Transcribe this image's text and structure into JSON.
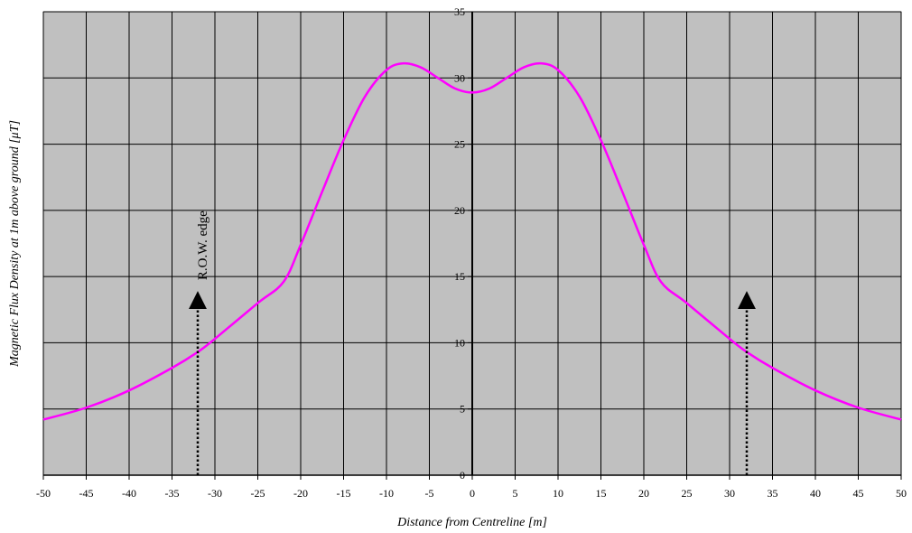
{
  "chart_data": {
    "type": "line",
    "title": "",
    "xlabel": "Distance from Centreline [m]",
    "ylabel": "Magnetic Flux Density at 1m above ground [μT]",
    "xlim": [
      -50,
      50
    ],
    "ylim": [
      0,
      35
    ],
    "xticks": [
      -50,
      -45,
      -40,
      -35,
      -30,
      -25,
      -20,
      -15,
      -10,
      -5,
      0,
      5,
      10,
      15,
      20,
      25,
      30,
      35,
      40,
      45,
      50
    ],
    "yticks": [
      0,
      5,
      10,
      15,
      20,
      25,
      30,
      35
    ],
    "grid": true,
    "plot_background": "#c0c0c0",
    "series": [
      {
        "color": "#ff00ff",
        "x": [
          -50,
          -45,
          -40,
          -35,
          -32,
          -30,
          -25,
          -22,
          -20,
          -17.5,
          -15,
          -12.5,
          -10,
          -8,
          -6,
          -4,
          -2,
          0,
          2,
          4,
          6,
          8,
          10,
          12.5,
          15,
          17.5,
          20,
          22,
          25,
          30,
          32,
          35,
          40,
          45,
          50
        ],
        "y": [
          4.2,
          5.1,
          6.4,
          8.1,
          9.3,
          10.3,
          13.0,
          14.6,
          17.4,
          21.4,
          25.3,
          28.6,
          30.6,
          31.1,
          30.8,
          30.0,
          29.2,
          28.9,
          29.2,
          30.0,
          30.8,
          31.1,
          30.6,
          28.6,
          25.3,
          21.4,
          17.4,
          14.6,
          13.0,
          10.3,
          9.3,
          8.1,
          6.4,
          5.1,
          4.2
        ]
      }
    ],
    "annotations": [
      {
        "text": "R.O.W. edge",
        "x": -32,
        "arrow_from": 0,
        "arrow_to": 13.5
      },
      {
        "text": "",
        "x": 32,
        "arrow_from": 0,
        "arrow_to": 13.5
      }
    ]
  }
}
